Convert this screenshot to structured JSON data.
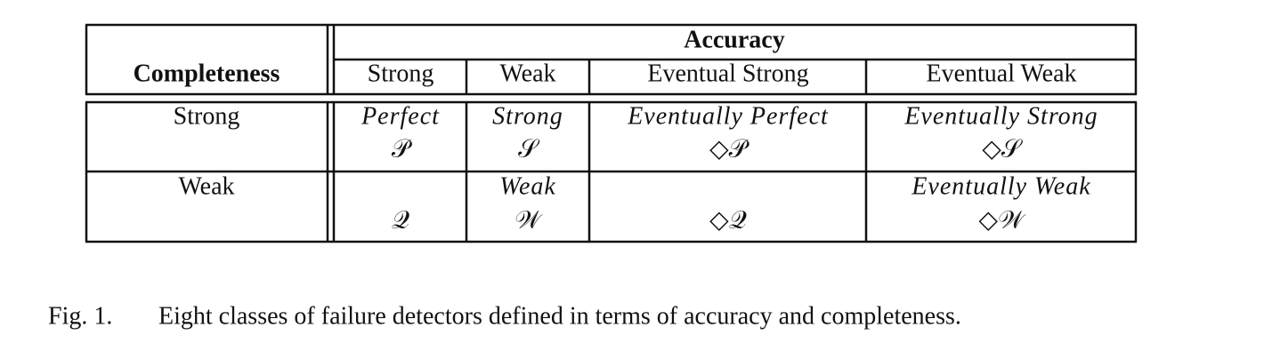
{
  "table": {
    "corner": "Completeness",
    "group_header": "Accuracy",
    "columns": [
      "Strong",
      "Weak",
      "Eventual Strong",
      "Eventual Weak"
    ],
    "rows": [
      {
        "label": "Strong",
        "cells": [
          {
            "name": "Perfect",
            "symbol": "𝒫"
          },
          {
            "name": "Strong",
            "symbol": "𝒮"
          },
          {
            "name": "Eventually Perfect",
            "symbol": "◇𝒫"
          },
          {
            "name": "Eventually Strong",
            "symbol": "◇𝒮"
          }
        ]
      },
      {
        "label": "Weak",
        "cells": [
          {
            "symbol": "𝒬"
          },
          {
            "name": "Weak",
            "symbol": "𝒲"
          },
          {
            "symbol": "◇𝒬"
          },
          {
            "name": "Eventually Weak",
            "symbol": "◇𝒲"
          }
        ]
      }
    ]
  },
  "caption": {
    "label": "Fig. 1.",
    "text": "Eight classes of failure detectors defined in terms of accuracy and completeness."
  }
}
